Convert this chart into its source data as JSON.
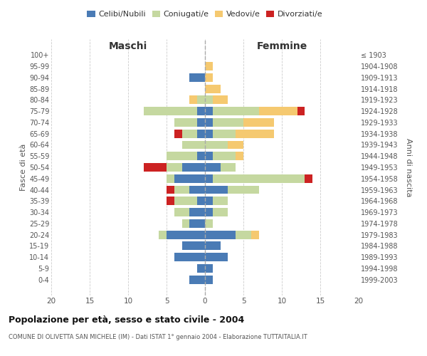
{
  "age_groups": [
    "100+",
    "95-99",
    "90-94",
    "85-89",
    "80-84",
    "75-79",
    "70-74",
    "65-69",
    "60-64",
    "55-59",
    "50-54",
    "45-49",
    "40-44",
    "35-39",
    "30-34",
    "25-29",
    "20-24",
    "15-19",
    "10-14",
    "5-9",
    "0-4"
  ],
  "birth_years": [
    "≤ 1903",
    "1904-1908",
    "1909-1913",
    "1914-1918",
    "1919-1923",
    "1924-1928",
    "1929-1933",
    "1934-1938",
    "1939-1943",
    "1944-1948",
    "1949-1953",
    "1954-1958",
    "1959-1963",
    "1964-1968",
    "1969-1973",
    "1974-1978",
    "1979-1983",
    "1984-1988",
    "1989-1993",
    "1994-1998",
    "1999-2003"
  ],
  "maschi": {
    "celibi": [
      0,
      0,
      2,
      0,
      0,
      1,
      1,
      1,
      0,
      1,
      3,
      4,
      2,
      1,
      2,
      2,
      5,
      3,
      4,
      1,
      2
    ],
    "coniugati": [
      0,
      0,
      0,
      0,
      1,
      7,
      3,
      2,
      3,
      4,
      2,
      1,
      2,
      3,
      2,
      1,
      1,
      0,
      0,
      0,
      0
    ],
    "vedovi": [
      0,
      0,
      0,
      0,
      1,
      0,
      0,
      0,
      0,
      0,
      0,
      0,
      0,
      0,
      0,
      0,
      0,
      0,
      0,
      0,
      0
    ],
    "divorziati": [
      0,
      0,
      0,
      0,
      0,
      0,
      0,
      1,
      0,
      0,
      3,
      0,
      1,
      1,
      0,
      0,
      0,
      0,
      0,
      0,
      0
    ]
  },
  "femmine": {
    "nubili": [
      0,
      0,
      0,
      0,
      0,
      1,
      1,
      1,
      0,
      1,
      2,
      1,
      3,
      1,
      1,
      0,
      4,
      2,
      3,
      1,
      1
    ],
    "coniugate": [
      0,
      0,
      0,
      0,
      1,
      6,
      4,
      3,
      3,
      3,
      2,
      12,
      4,
      2,
      2,
      1,
      2,
      0,
      0,
      0,
      0
    ],
    "vedove": [
      0,
      1,
      1,
      2,
      2,
      5,
      4,
      5,
      2,
      1,
      0,
      0,
      0,
      0,
      0,
      0,
      1,
      0,
      0,
      0,
      0
    ],
    "divorziate": [
      0,
      0,
      0,
      0,
      0,
      1,
      0,
      0,
      0,
      0,
      0,
      1,
      0,
      0,
      0,
      0,
      0,
      0,
      0,
      0,
      0
    ]
  },
  "colors": {
    "celibi_nubili": "#4a7bb5",
    "coniugati_e": "#c5d8a0",
    "vedovi_e": "#f5c970",
    "divorziati_e": "#cc2222"
  },
  "xlim": 20,
  "title": "Popolazione per età, sesso e stato civile - 2004",
  "subtitle": "COMUNE DI OLIVETTA SAN MICHELE (IM) - Dati ISTAT 1° gennaio 2004 - Elaborazione TUTTAITALIA.IT",
  "xlabel_left": "Maschi",
  "xlabel_right": "Femmine",
  "ylabel_left": "Fasce di età",
  "ylabel_right": "Anni di nascita",
  "legend_labels": [
    "Celibi/Nubili",
    "Coniugati/e",
    "Vedovi/e",
    "Divorziati/e"
  ],
  "background": "#ffffff",
  "grid_color": "#cccccc"
}
